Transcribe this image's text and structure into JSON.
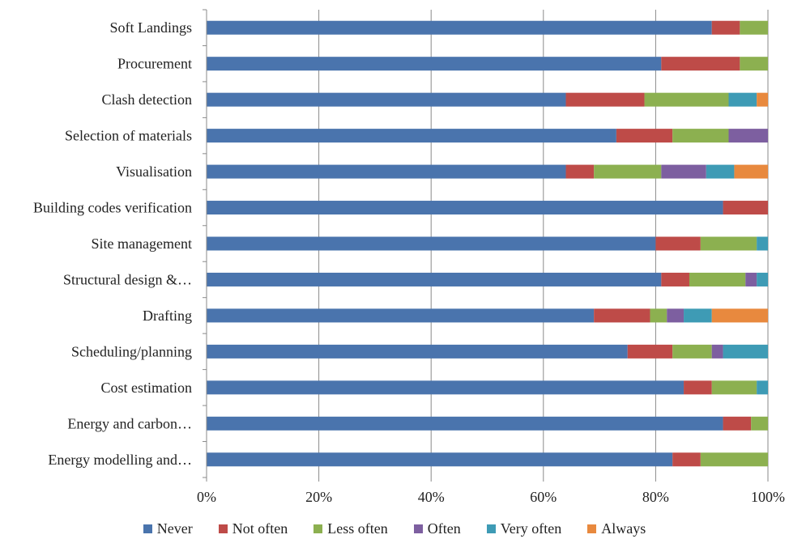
{
  "chart_data": {
    "type": "bar",
    "orientation": "horizontal",
    "stacked": "percent",
    "categories": [
      "Soft Landings",
      "Procurement",
      "Clash detection",
      "Selection of materials",
      "Visualisation",
      "Building codes verification",
      "Site management",
      "Structural design &…",
      "Drafting",
      "Scheduling/planning",
      "Cost estimation",
      "Energy and carbon…",
      "Energy modelling and…"
    ],
    "series": [
      {
        "name": "Never",
        "color": "#4A74AD",
        "values": [
          90,
          81,
          64,
          73,
          64,
          92,
          80,
          81,
          69,
          75,
          85,
          92,
          83
        ]
      },
      {
        "name": "Not often",
        "color": "#BE4B48",
        "values": [
          5,
          14,
          14,
          10,
          5,
          8,
          8,
          5,
          10,
          8,
          5,
          5,
          5
        ]
      },
      {
        "name": "Less often",
        "color": "#8CB050",
        "values": [
          5,
          5,
          15,
          10,
          12,
          0,
          10,
          10,
          3,
          7,
          8,
          3,
          12
        ]
      },
      {
        "name": "Often",
        "color": "#7D5FA0",
        "values": [
          0,
          0,
          0,
          7,
          8,
          0,
          0,
          2,
          3,
          2,
          0,
          0,
          0
        ]
      },
      {
        "name": "Very often",
        "color": "#3E9BB5",
        "values": [
          0,
          0,
          5,
          0,
          5,
          0,
          2,
          2,
          5,
          8,
          2,
          0,
          0
        ]
      },
      {
        "name": "Always",
        "color": "#E8893E",
        "values": [
          0,
          0,
          2,
          0,
          6,
          0,
          0,
          0,
          10,
          0,
          0,
          0,
          0
        ]
      }
    ],
    "x_ticks": [
      "0%",
      "20%",
      "40%",
      "60%",
      "80%",
      "100%"
    ],
    "xlim": [
      0,
      100
    ],
    "grid": true,
    "legend": "bottom"
  }
}
